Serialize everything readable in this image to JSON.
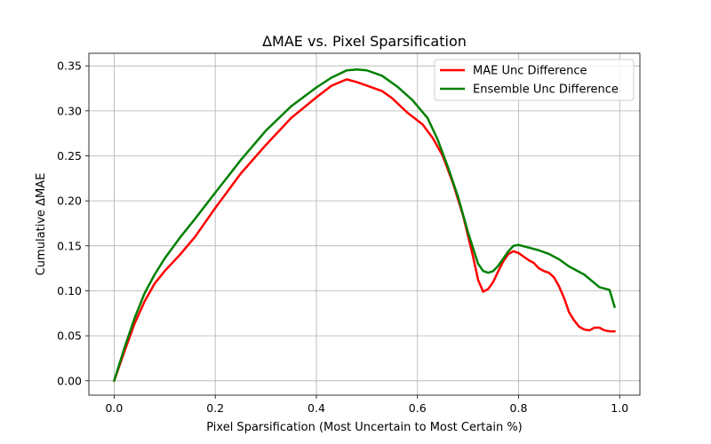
{
  "chart_data": {
    "type": "line",
    "title": "ΔMAE vs. Pixel Sparsification",
    "xlabel": "Pixel Sparsification (Most Uncertain to Most Certain %)",
    "ylabel": "Cumulative ΔMAE",
    "xlim": [
      -0.05,
      1.04
    ],
    "ylim": [
      -0.016,
      0.364
    ],
    "grid": true,
    "legend_position": "upper-right",
    "xticks": [
      0.0,
      0.2,
      0.4,
      0.6,
      0.8,
      1.0
    ],
    "xtick_labels": [
      "0.0",
      "0.2",
      "0.4",
      "0.6",
      "0.8",
      "1.0"
    ],
    "yticks": [
      0.0,
      0.05,
      0.1,
      0.15,
      0.2,
      0.25,
      0.3,
      0.35
    ],
    "ytick_labels": [
      "0.00",
      "0.05",
      "0.10",
      "0.15",
      "0.20",
      "0.25",
      "0.30",
      "0.35"
    ],
    "series": [
      {
        "name": "MAE Unc Difference",
        "color": "#ff0000",
        "x": [
          0.0,
          0.02,
          0.04,
          0.06,
          0.08,
          0.1,
          0.13,
          0.16,
          0.2,
          0.25,
          0.3,
          0.35,
          0.4,
          0.43,
          0.46,
          0.48,
          0.5,
          0.53,
          0.55,
          0.58,
          0.61,
          0.63,
          0.65,
          0.67,
          0.69,
          0.71,
          0.72,
          0.73,
          0.74,
          0.75,
          0.76,
          0.77,
          0.78,
          0.79,
          0.8,
          0.81,
          0.82,
          0.83,
          0.84,
          0.85,
          0.86,
          0.87,
          0.88,
          0.89,
          0.9,
          0.91,
          0.92,
          0.93,
          0.94,
          0.95,
          0.96,
          0.97,
          0.98,
          0.99
        ],
        "y": [
          0.0,
          0.032,
          0.063,
          0.088,
          0.108,
          0.122,
          0.14,
          0.16,
          0.192,
          0.23,
          0.262,
          0.292,
          0.315,
          0.328,
          0.335,
          0.332,
          0.328,
          0.322,
          0.314,
          0.298,
          0.285,
          0.27,
          0.25,
          0.22,
          0.184,
          0.138,
          0.112,
          0.099,
          0.102,
          0.11,
          0.122,
          0.133,
          0.141,
          0.144,
          0.142,
          0.138,
          0.134,
          0.131,
          0.125,
          0.122,
          0.12,
          0.115,
          0.105,
          0.092,
          0.076,
          0.067,
          0.06,
          0.057,
          0.056,
          0.059,
          0.059,
          0.056,
          0.055,
          0.055
        ]
      },
      {
        "name": "Ensemble Unc Difference",
        "color": "#008000",
        "x": [
          0.0,
          0.02,
          0.04,
          0.06,
          0.08,
          0.1,
          0.13,
          0.16,
          0.2,
          0.25,
          0.3,
          0.35,
          0.4,
          0.43,
          0.46,
          0.48,
          0.5,
          0.53,
          0.56,
          0.59,
          0.62,
          0.64,
          0.66,
          0.68,
          0.7,
          0.72,
          0.73,
          0.74,
          0.75,
          0.76,
          0.77,
          0.78,
          0.79,
          0.8,
          0.82,
          0.84,
          0.86,
          0.88,
          0.9,
          0.93,
          0.96,
          0.98,
          0.99
        ],
        "y": [
          0.0,
          0.036,
          0.069,
          0.097,
          0.118,
          0.136,
          0.159,
          0.18,
          0.209,
          0.245,
          0.278,
          0.305,
          0.326,
          0.337,
          0.345,
          0.346,
          0.345,
          0.339,
          0.327,
          0.312,
          0.292,
          0.268,
          0.238,
          0.205,
          0.165,
          0.13,
          0.122,
          0.12,
          0.122,
          0.128,
          0.136,
          0.144,
          0.15,
          0.151,
          0.148,
          0.145,
          0.141,
          0.135,
          0.127,
          0.118,
          0.104,
          0.101,
          0.082
        ]
      }
    ]
  }
}
